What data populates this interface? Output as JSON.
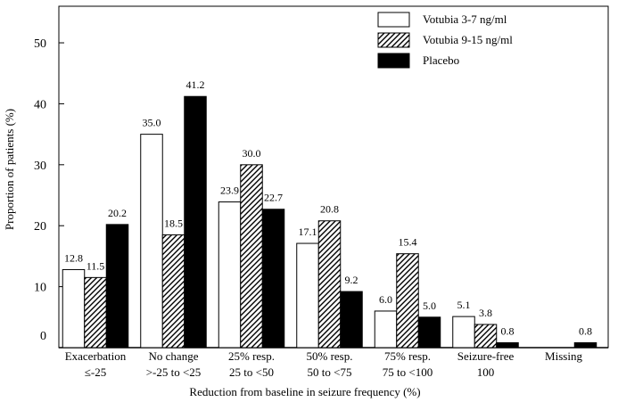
{
  "chart_data": {
    "type": "bar",
    "title": "",
    "xlabel": "Reduction from baseline in seizure frequency (%)",
    "ylabel": "Proportion of patients (%)",
    "ylim": [
      0,
      56
    ],
    "yticks": [
      0,
      10,
      20,
      30,
      40,
      50
    ],
    "grid": false,
    "legend_position": "top-right",
    "categories": [
      [
        "Exacerbation",
        "≤-25"
      ],
      [
        "No change",
        ">-25 to <25"
      ],
      [
        "25% resp.",
        "25 to <50"
      ],
      [
        "50% resp.",
        "50 to <75"
      ],
      [
        "75% resp.",
        "75 to <100"
      ],
      [
        "Seizure-free",
        "100"
      ],
      [
        "Missing",
        ""
      ]
    ],
    "series": [
      {
        "name": "Votubia 3-7 ng/ml",
        "pattern": "white",
        "values": [
          12.8,
          35.0,
          23.9,
          17.1,
          6.0,
          5.1,
          null
        ],
        "labels": [
          "12.8",
          "35.0",
          "23.9",
          "17.1",
          "6.0",
          "5.1",
          ""
        ]
      },
      {
        "name": "Votubia 9-15 ng/ml",
        "pattern": "hatched",
        "values": [
          11.5,
          18.5,
          30.0,
          20.8,
          15.4,
          3.8,
          null
        ],
        "labels": [
          "11.5",
          "18.5",
          "30.0",
          "20.8",
          "15.4",
          "3.8",
          ""
        ]
      },
      {
        "name": "Placebo",
        "pattern": "black",
        "values": [
          20.2,
          41.2,
          22.7,
          9.2,
          5.0,
          0.8,
          0.8
        ],
        "labels": [
          "20.2",
          "41.2",
          "22.7",
          "9.2",
          "5.0",
          "0.8",
          "0.8"
        ]
      }
    ]
  }
}
